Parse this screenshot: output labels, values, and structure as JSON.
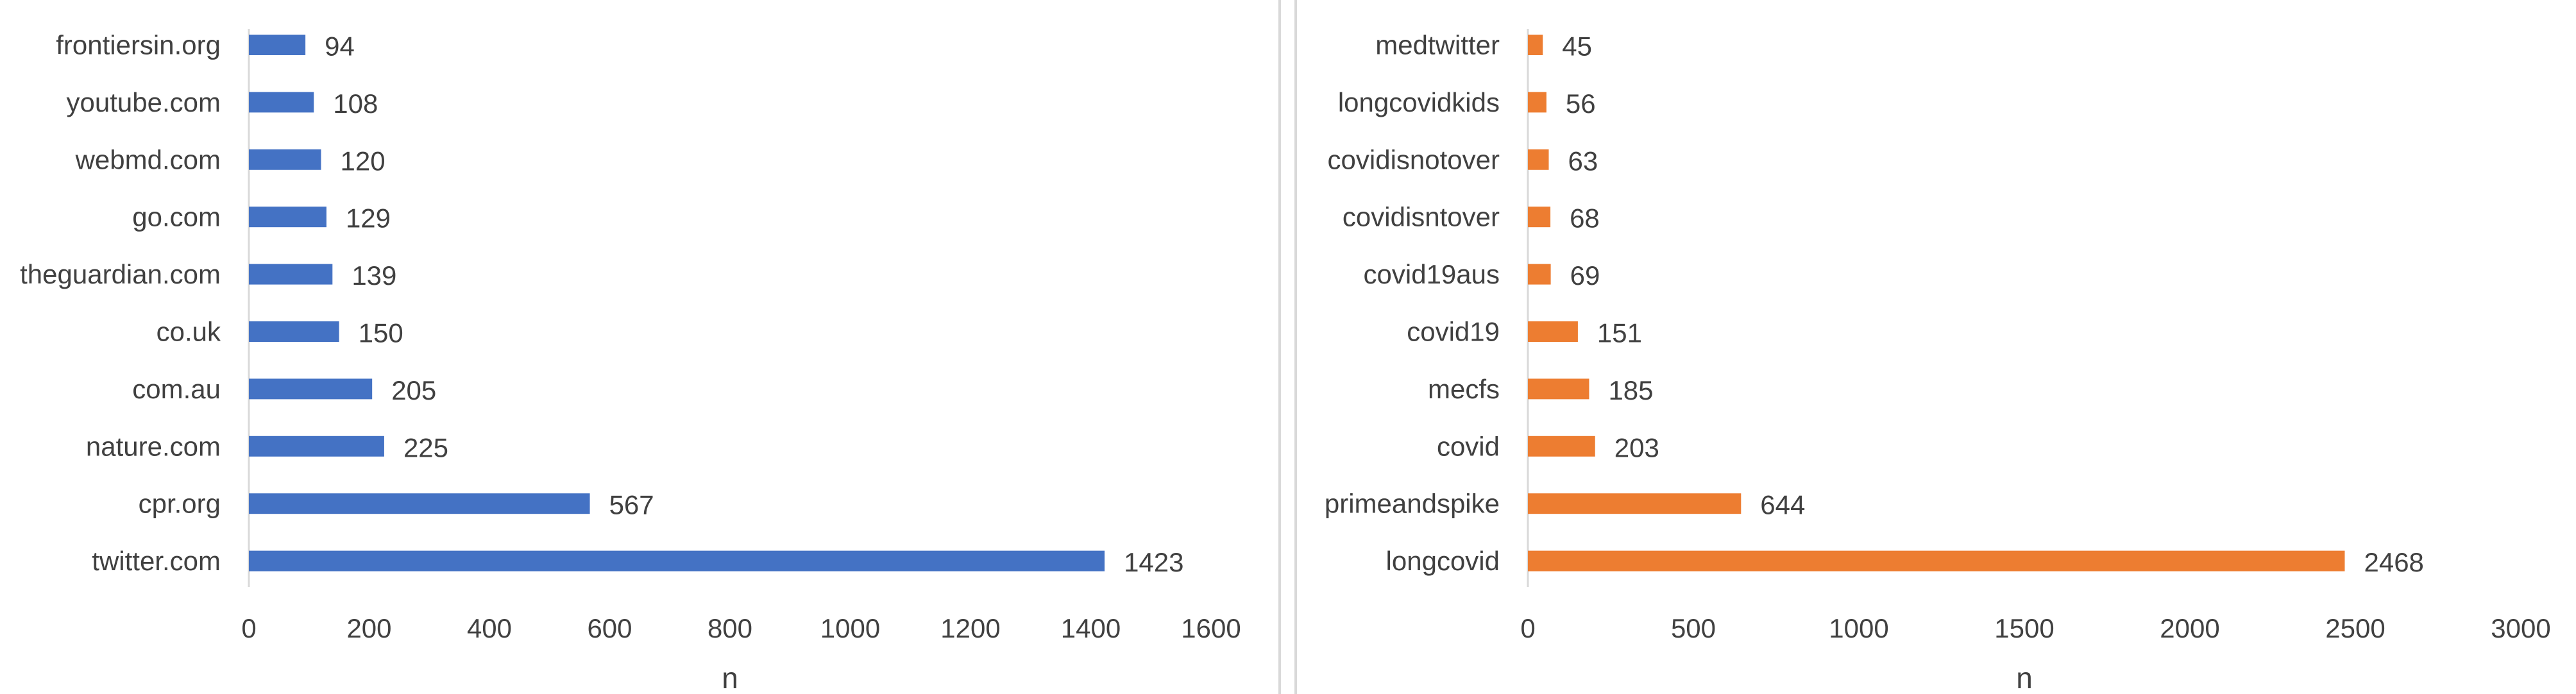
{
  "chart_data": [
    {
      "type": "bar",
      "orientation": "horizontal",
      "categories": [
        "frontiersin.org",
        "youtube.com",
        "webmd.com",
        "go.com",
        "theguardian.com",
        "co.uk",
        "com.au",
        "nature.com",
        "cpr.org",
        "twitter.com"
      ],
      "values": [
        94,
        108,
        120,
        129,
        139,
        150,
        205,
        225,
        567,
        1423
      ],
      "xlabel": "n",
      "ylabel": "",
      "xlim": [
        0,
        1600
      ],
      "xticks": [
        0,
        200,
        400,
        600,
        800,
        1000,
        1200,
        1400,
        1600
      ],
      "color": "#4472C4",
      "data_labels": true,
      "grid": false
    },
    {
      "type": "bar",
      "orientation": "horizontal",
      "categories": [
        "medtwitter",
        "longcovidkids",
        "covidisnotover",
        "covidisntover",
        "covid19aus",
        "covid19",
        "mecfs",
        "covid",
        "primeandspike",
        "longcovid"
      ],
      "values": [
        45,
        56,
        63,
        68,
        69,
        151,
        185,
        203,
        644,
        2468
      ],
      "xlabel": "n",
      "ylabel": "",
      "xlim": [
        0,
        3000
      ],
      "xticks": [
        0,
        500,
        1000,
        1500,
        2000,
        2500,
        3000
      ],
      "color": "#ED7D31",
      "data_labels": true,
      "grid": false
    }
  ]
}
